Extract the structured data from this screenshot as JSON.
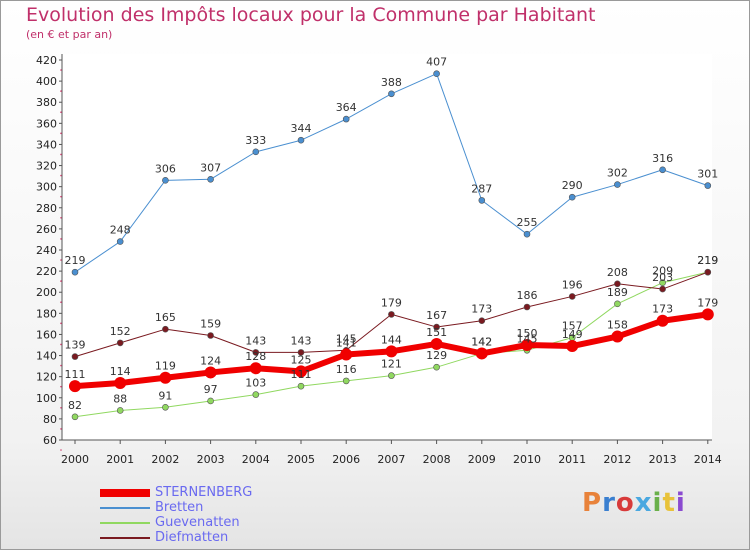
{
  "header": {
    "title": "Evolution des Impôts locaux pour la Commune par Habitant",
    "subtitle": "(en € et par an)"
  },
  "logo": {
    "text": "Proxiti",
    "colors": [
      "#e8823a",
      "#3a7fd0",
      "#d83a3a",
      "#4aa8e0",
      "#6ab04a",
      "#e8c23a",
      "#8a4ad0"
    ]
  },
  "chart_data": {
    "type": "line",
    "x": [
      "2000",
      "2001",
      "2002",
      "2003",
      "2004",
      "2005",
      "2006",
      "2007",
      "2008",
      "2009",
      "2010",
      "2011",
      "2012",
      "2013",
      "2014"
    ],
    "ylim": [
      60,
      420
    ],
    "yticks": [
      60,
      80,
      100,
      120,
      140,
      160,
      180,
      200,
      220,
      240,
      260,
      280,
      300,
      320,
      340,
      360,
      380,
      400,
      420
    ],
    "grid": false,
    "legend_position": "bottom-left",
    "series": [
      {
        "name": "Bretten",
        "color": "#4a8fd0",
        "width": 1,
        "values": [
          219,
          248,
          306,
          307,
          333,
          344,
          364,
          388,
          407,
          287,
          255,
          290,
          302,
          316,
          301
        ]
      },
      {
        "name": "Guevenatten",
        "color": "#90d860",
        "width": 1,
        "values": [
          82,
          88,
          91,
          97,
          103,
          111,
          116,
          121,
          129,
          142,
          145,
          157,
          189,
          209,
          219
        ]
      },
      {
        "name": "Diefmatten",
        "color": "#7a1a20",
        "width": 1,
        "values": [
          139,
          152,
          165,
          159,
          143,
          143,
          145,
          179,
          167,
          173,
          186,
          196,
          208,
          203,
          219
        ]
      },
      {
        "name": "STERNENBERG",
        "color": "#f00000",
        "width": 6,
        "values": [
          111,
          114,
          119,
          124,
          128,
          125,
          141,
          144,
          151,
          142,
          150,
          149,
          158,
          173,
          179
        ]
      }
    ],
    "legend_order": [
      "STERNENBERG",
      "Bretten",
      "Guevenatten",
      "Diefmatten"
    ]
  }
}
